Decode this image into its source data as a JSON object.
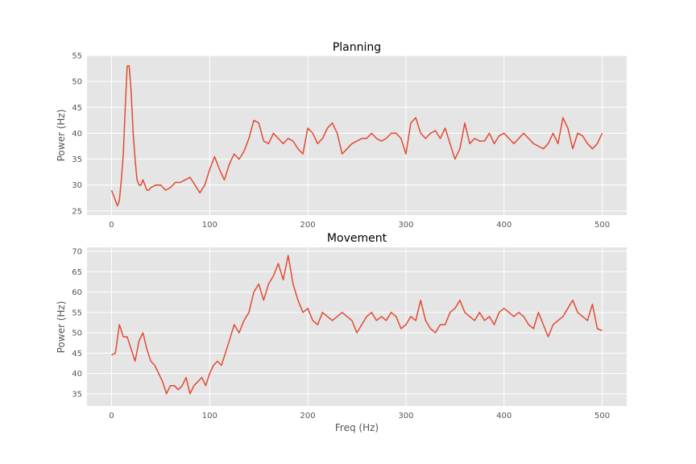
{
  "chart_data": [
    {
      "type": "line",
      "title": "Planning",
      "xlabel": "",
      "ylabel": "Power (Hz)",
      "xlim": [
        -25,
        525
      ],
      "ylim": [
        24.2,
        55
      ],
      "xticks": [
        0,
        100,
        200,
        300,
        400,
        500
      ],
      "yticks": [
        25,
        30,
        35,
        40,
        45,
        50,
        55
      ],
      "grid": true,
      "colors": {
        "line": "#e24a33",
        "background": "#e5e5e5",
        "grid": "#ffffff"
      },
      "series": [
        {
          "x": [
            0,
            2,
            4,
            6,
            8,
            10,
            12,
            14,
            16,
            18,
            20,
            22,
            24,
            26,
            28,
            30,
            32,
            34,
            36,
            38,
            40,
            45,
            50,
            55,
            60,
            65,
            70,
            75,
            80,
            85,
            90,
            95,
            100,
            105,
            110,
            115,
            120,
            125,
            130,
            135,
            140,
            145,
            150,
            155,
            160,
            165,
            170,
            175,
            180,
            185,
            190,
            195,
            200,
            205,
            210,
            215,
            220,
            225,
            230,
            235,
            240,
            245,
            250,
            255,
            260,
            265,
            270,
            275,
            280,
            285,
            290,
            295,
            300,
            305,
            310,
            315,
            320,
            325,
            330,
            335,
            340,
            345,
            350,
            355,
            360,
            365,
            370,
            375,
            380,
            385,
            390,
            395,
            400,
            405,
            410,
            415,
            420,
            425,
            430,
            435,
            440,
            445,
            450,
            455,
            460,
            465,
            470,
            475,
            480,
            485,
            490,
            495,
            500
          ],
          "y": [
            29,
            28,
            27,
            26,
            27,
            31,
            36,
            45,
            53,
            53,
            48,
            40,
            35,
            31,
            30,
            30,
            31,
            30,
            29,
            29,
            29.5,
            30,
            30,
            29,
            29.5,
            30.5,
            30.5,
            31,
            31.5,
            30,
            28.5,
            30,
            33,
            35.5,
            33,
            31,
            34,
            36,
            35,
            36.5,
            39,
            42.5,
            42,
            38.5,
            38,
            40,
            39,
            38,
            39,
            38.5,
            37,
            36,
            41,
            40,
            38,
            39,
            41,
            42,
            40,
            36,
            37,
            38,
            38.5,
            39,
            39,
            40,
            39,
            38.5,
            39,
            40,
            40,
            39,
            36,
            42,
            43,
            40,
            39,
            40,
            40.5,
            39,
            41,
            38,
            35,
            37,
            42,
            38,
            39,
            38.5,
            38.5,
            40,
            38,
            39.5,
            40,
            39,
            38,
            39,
            40,
            39,
            38,
            37.5,
            37,
            38,
            40,
            38,
            43,
            41,
            37,
            40,
            39.5,
            38,
            37,
            38,
            40
          ]
        }
      ]
    },
    {
      "type": "line",
      "title": "Movement",
      "xlabel": "Freq (Hz)",
      "ylabel": "Power (Hz)",
      "xlim": [
        -25,
        525
      ],
      "ylim": [
        32,
        71
      ],
      "xticks": [
        0,
        100,
        200,
        300,
        400,
        500
      ],
      "yticks": [
        35,
        40,
        45,
        50,
        55,
        60,
        65,
        70
      ],
      "grid": true,
      "colors": {
        "line": "#e24a33",
        "background": "#e5e5e5",
        "grid": "#ffffff"
      },
      "series": [
        {
          "x": [
            0,
            4,
            8,
            12,
            16,
            20,
            24,
            28,
            32,
            36,
            40,
            44,
            48,
            52,
            56,
            60,
            64,
            68,
            72,
            76,
            80,
            84,
            88,
            92,
            96,
            100,
            104,
            108,
            112,
            116,
            120,
            125,
            130,
            135,
            140,
            145,
            150,
            155,
            160,
            165,
            170,
            175,
            180,
            185,
            190,
            195,
            200,
            205,
            210,
            215,
            220,
            225,
            230,
            235,
            240,
            245,
            250,
            255,
            260,
            265,
            270,
            275,
            280,
            285,
            290,
            295,
            300,
            305,
            310,
            315,
            320,
            325,
            330,
            335,
            340,
            345,
            350,
            355,
            360,
            365,
            370,
            375,
            380,
            385,
            390,
            395,
            400,
            405,
            410,
            415,
            420,
            425,
            430,
            435,
            440,
            445,
            450,
            455,
            460,
            465,
            470,
            475,
            480,
            485,
            490,
            495,
            500
          ],
          "y": [
            44.5,
            45,
            52,
            49,
            49,
            46,
            43,
            48,
            50,
            46,
            43,
            42,
            40,
            38,
            35,
            37,
            37,
            36,
            37,
            39,
            35,
            37,
            38,
            39,
            37,
            40,
            42,
            43,
            42,
            45,
            48,
            52,
            50,
            53,
            55,
            60,
            62,
            58,
            62,
            64,
            67,
            63,
            69,
            62,
            58,
            55,
            56,
            53,
            52,
            55,
            54,
            53,
            54,
            55,
            54,
            53,
            50,
            52,
            54,
            55,
            53,
            54,
            53,
            55,
            54,
            51,
            52,
            54,
            53,
            58,
            53,
            51,
            50,
            52,
            52,
            55,
            56,
            58,
            55,
            54,
            53,
            55,
            53,
            54,
            52,
            55,
            56,
            55,
            54,
            55,
            54,
            52,
            51,
            55,
            52,
            49,
            52,
            53,
            54,
            56,
            58,
            55,
            54,
            53,
            57,
            51,
            50.5
          ]
        }
      ]
    }
  ]
}
